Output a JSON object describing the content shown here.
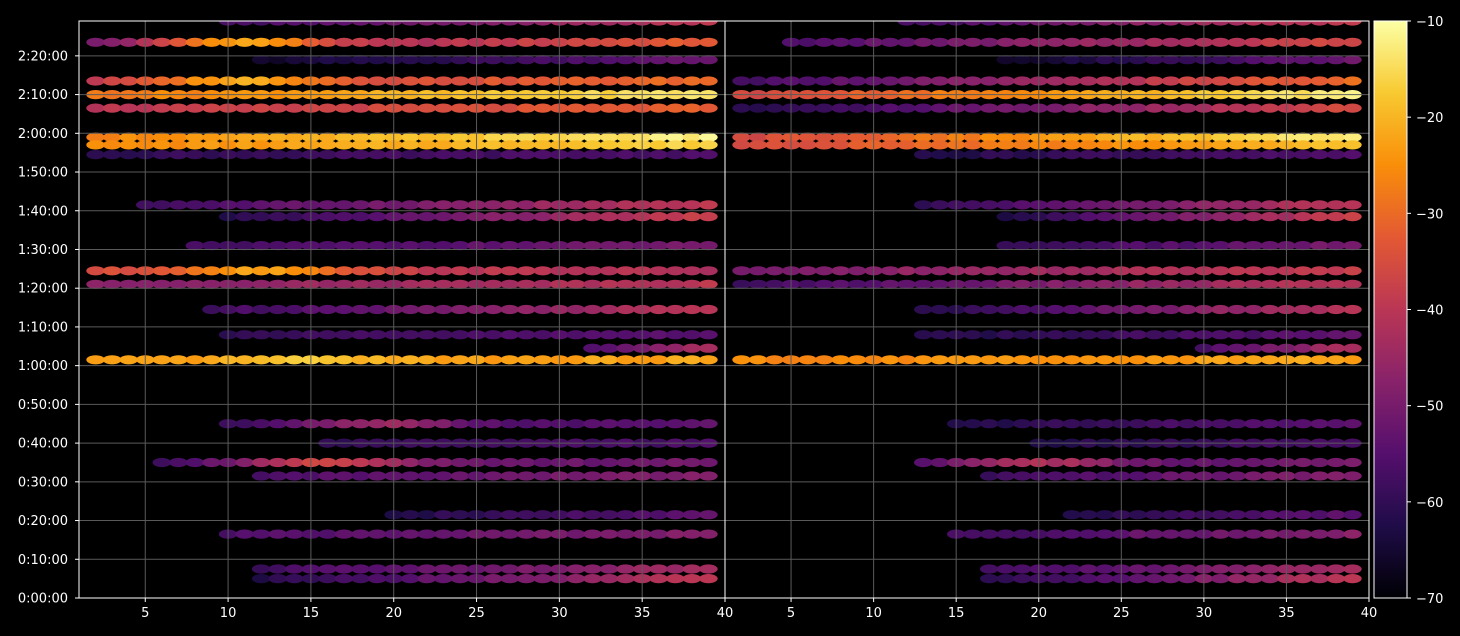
{
  "chart_data": {
    "type": "heatmap",
    "panels": [
      {
        "name": "",
        "x_ticks": [
          5,
          10,
          15,
          20,
          25,
          30,
          35,
          40
        ],
        "xlim": [
          1,
          40
        ],
        "y_ticks": [
          "0:00:00",
          "0:10:00",
          "0:20:00",
          "0:30:00",
          "0:40:00",
          "0:50:00",
          "1:00:00",
          "1:10:00",
          "1:20:00",
          "1:30:00",
          "1:40:00",
          "1:50:00",
          "2:00:00",
          "2:10:00",
          "2:20:00"
        ],
        "ylim_seconds": [
          0,
          8940
        ],
        "bands": [
          {
            "time": "2:29:00",
            "x_start": 10,
            "values_start": -58,
            "values_end": -40
          },
          {
            "time": "2:23:30",
            "x_start": 2,
            "values_start": -52,
            "values_end": -32,
            "peak": {
              "x": 11,
              "value": -22
            }
          },
          {
            "time": "2:19:00",
            "x_start": 12,
            "values_start": -66,
            "values_end": -52
          },
          {
            "time": "2:13:30",
            "x_start": 2,
            "values_start": -40,
            "values_end": -30,
            "peak": {
              "x": 11,
              "value": -21
            }
          },
          {
            "time": "2:10:00",
            "x_start": 2,
            "values_start": -28,
            "values_end": -13
          },
          {
            "time": "2:06:30",
            "x_start": 2,
            "values_start": -40,
            "values_end": -32
          },
          {
            "time": "1:59:00",
            "x_start": 2,
            "values_start": -26,
            "values_end": -12
          },
          {
            "time": "1:57:00",
            "x_start": 2,
            "values_start": -26,
            "values_end": -16
          },
          {
            "time": "1:54:30",
            "x_start": 2,
            "values_start": -60,
            "values_end": -56
          },
          {
            "time": "1:41:30",
            "x_start": 5,
            "values_start": -58,
            "values_end": -40
          },
          {
            "time": "1:38:30",
            "x_start": 10,
            "values_start": -62,
            "values_end": -38
          },
          {
            "time": "1:31:00",
            "x_start": 8,
            "values_start": -58,
            "values_end": -50
          },
          {
            "time": "1:24:30",
            "x_start": 2,
            "values_start": -36,
            "values_end": -42,
            "peak": {
              "x": 12,
              "value": -22
            }
          },
          {
            "time": "1:21:00",
            "x_start": 2,
            "values_start": -48,
            "values_end": -40
          },
          {
            "time": "1:14:30",
            "x_start": 9,
            "values_start": -58,
            "values_end": -40
          },
          {
            "time": "1:08:00",
            "x_start": 10,
            "values_start": -60,
            "values_end": -54
          },
          {
            "time": "1:04:30",
            "x_start": 32,
            "values_start": -56,
            "values_end": -42
          },
          {
            "time": "1:01:30",
            "x_start": 2,
            "values_start": -24,
            "values_end": -22,
            "peak": {
              "x": 15,
              "value": -18
            }
          },
          {
            "time": "0:45:00",
            "x_start": 10,
            "values_start": -60,
            "values_end": -54,
            "peak": {
              "x": 19,
              "value": -45
            }
          },
          {
            "time": "0:40:00",
            "x_start": 16,
            "values_start": -60,
            "values_end": -56
          },
          {
            "time": "0:35:00",
            "x_start": 6,
            "values_start": -58,
            "values_end": -50,
            "peak": {
              "x": 16,
              "value": -36
            }
          },
          {
            "time": "0:31:30",
            "x_start": 12,
            "values_start": -56,
            "values_end": -48
          },
          {
            "time": "0:21:30",
            "x_start": 20,
            "values_start": -62,
            "values_end": -54
          },
          {
            "time": "0:16:30",
            "x_start": 10,
            "values_start": -56,
            "values_end": -48
          },
          {
            "time": "0:07:30",
            "x_start": 12,
            "values_start": -58,
            "values_end": -44
          },
          {
            "time": "0:05:00",
            "x_start": 12,
            "values_start": -62,
            "values_end": -40
          }
        ]
      },
      {
        "name": "",
        "x_ticks": [
          5,
          10,
          15,
          20,
          25,
          30,
          35,
          40
        ],
        "xlim": [
          1,
          40
        ],
        "y_ticks": [],
        "ylim_seconds": [
          0,
          8940
        ],
        "bands": [
          {
            "time": "2:29:00",
            "x_start": 12,
            "values_start": -58,
            "values_end": -38
          },
          {
            "time": "2:23:30",
            "x_start": 5,
            "values_start": -56,
            "values_end": -36
          },
          {
            "time": "2:19:00",
            "x_start": 18,
            "values_start": -66,
            "values_end": -52
          },
          {
            "time": "2:13:30",
            "x_start": 2,
            "values_start": -58,
            "values_end": -30
          },
          {
            "time": "2:10:00",
            "x_start": 2,
            "values_start": -36,
            "values_end": -12
          },
          {
            "time": "2:06:30",
            "x_start": 2,
            "values_start": -62,
            "values_end": -36
          },
          {
            "time": "1:59:00",
            "x_start": 2,
            "values_start": -36,
            "values_end": -12
          },
          {
            "time": "1:57:00",
            "x_start": 2,
            "values_start": -36,
            "values_end": -18
          },
          {
            "time": "1:54:30",
            "x_start": 13,
            "values_start": -62,
            "values_end": -56
          },
          {
            "time": "1:41:30",
            "x_start": 13,
            "values_start": -60,
            "values_end": -40
          },
          {
            "time": "1:38:30",
            "x_start": 18,
            "values_start": -62,
            "values_end": -38
          },
          {
            "time": "1:31:00",
            "x_start": 18,
            "values_start": -60,
            "values_end": -50
          },
          {
            "time": "1:24:30",
            "x_start": 2,
            "values_start": -50,
            "values_end": -38
          },
          {
            "time": "1:21:00",
            "x_start": 2,
            "values_start": -58,
            "values_end": -40
          },
          {
            "time": "1:14:30",
            "x_start": 13,
            "values_start": -62,
            "values_end": -40
          },
          {
            "time": "1:08:00",
            "x_start": 13,
            "values_start": -62,
            "values_end": -54
          },
          {
            "time": "1:04:30",
            "x_start": 30,
            "values_start": -56,
            "values_end": -42
          },
          {
            "time": "1:01:30",
            "x_start": 2,
            "values_start": -26,
            "values_end": -22
          },
          {
            "time": "0:45:00",
            "x_start": 15,
            "values_start": -62,
            "values_end": -54
          },
          {
            "time": "0:40:00",
            "x_start": 20,
            "values_start": -62,
            "values_end": -56
          },
          {
            "time": "0:35:00",
            "x_start": 13,
            "values_start": -58,
            "values_end": -50,
            "peak": {
              "x": 20,
              "value": -42
            }
          },
          {
            "time": "0:31:30",
            "x_start": 17,
            "values_start": -58,
            "values_end": -48
          },
          {
            "time": "0:21:30",
            "x_start": 22,
            "values_start": -62,
            "values_end": -54
          },
          {
            "time": "0:16:30",
            "x_start": 15,
            "values_start": -58,
            "values_end": -48
          },
          {
            "time": "0:07:30",
            "x_start": 17,
            "values_start": -58,
            "values_end": -44
          },
          {
            "time": "0:05:00",
            "x_start": 17,
            "values_start": -62,
            "values_end": -40
          }
        ]
      }
    ],
    "colorbar": {
      "colormap": "inferno",
      "min": -70,
      "max": -10,
      "ticks": [
        -10,
        -20,
        -30,
        -40,
        -50,
        -60,
        -70
      ]
    },
    "grid": true,
    "background": "#000000",
    "foreground": "#ffffff",
    "grid_color": "#5a5a5a"
  }
}
